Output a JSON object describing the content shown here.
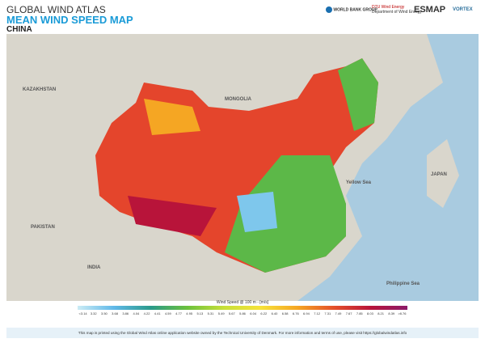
{
  "header": {
    "title": "GLOBAL WIND ATLAS",
    "subtitle": "MEAN WIND SPEED MAP",
    "region": "CHINA"
  },
  "logos": {
    "world_bank": "WORLD BANK GROUP",
    "dtu": "DTU Wind Energy",
    "dtu_sub": "Department of Wind Energy",
    "esmap": "ESMAP",
    "vortex": "VORTEX"
  },
  "map": {
    "labels": [
      "KAZAKHSTAN",
      "MONGOLIA",
      "PAKISTAN",
      "INDIA",
      "JAPAN",
      "Yellow Sea",
      "Philippine Sea"
    ]
  },
  "legend": {
    "title": "Wind Speed @ 100 m - [m/s]",
    "ticks": [
      "<3.14",
      "3.32",
      "3.50",
      "3.68",
      "3.86",
      "4.04",
      "4.22",
      "4.41",
      "4.59",
      "4.77",
      "4.95",
      "5.13",
      "5.31",
      "5.49",
      "5.67",
      "5.86",
      "6.04",
      "6.22",
      "6.40",
      "6.58",
      "6.76",
      "6.94",
      "7.12",
      "7.31",
      "7.49",
      "7.67",
      "7.85",
      "8.03",
      "8.21",
      "8.39",
      ">8.76"
    ]
  },
  "footer": {
    "text": "This map is printed using the Global Wind Atlas online application website owned by the Technical University of Denmark. For more information and terms of use, please visit https://globalwindatlas.info"
  }
}
